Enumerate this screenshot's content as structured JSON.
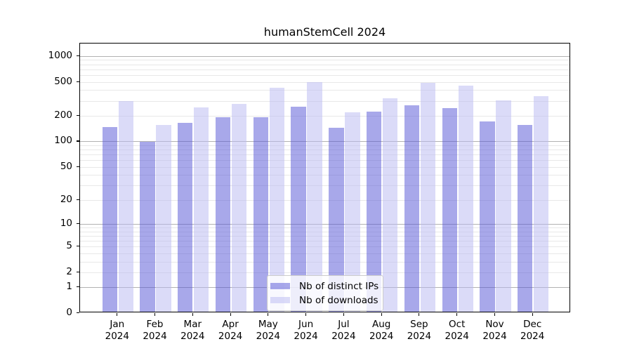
{
  "chart_data": {
    "type": "bar",
    "title": "humanStemCell 2024",
    "categories": [
      "Jan",
      "Feb",
      "Mar",
      "Apr",
      "May",
      "Jun",
      "Jul",
      "Aug",
      "Sep",
      "Oct",
      "Nov",
      "Dec"
    ],
    "year_label": "2024",
    "series": [
      {
        "name": "Nb of distinct IPs",
        "color": "rgba(81, 81, 214, 0.5)",
        "values": [
          141,
          96,
          160,
          184,
          187,
          248,
          139,
          217,
          258,
          236,
          165,
          150
        ]
      },
      {
        "name": "Nb of downloads",
        "color": "rgba(184, 184, 242, 0.5)",
        "values": [
          288,
          150,
          240,
          268,
          410,
          480,
          212,
          310,
          470,
          432,
          290,
          325
        ]
      }
    ],
    "yscale": "log1p",
    "ylim": [
      0,
      1400
    ],
    "yticks_labeled": [
      0,
      1,
      2,
      5,
      10,
      20,
      50,
      100,
      200,
      500,
      1000
    ],
    "yticks_major_grid": [
      1,
      10,
      100,
      1000
    ],
    "grid": true,
    "legend_position": "lower center"
  },
  "colors": {
    "major_grid": "#b2b2b2",
    "minor_grid": "#e8e8e8",
    "spine": "#000000",
    "text": "#000000",
    "legend_border": "#cccccc",
    "background": "#ffffff"
  }
}
